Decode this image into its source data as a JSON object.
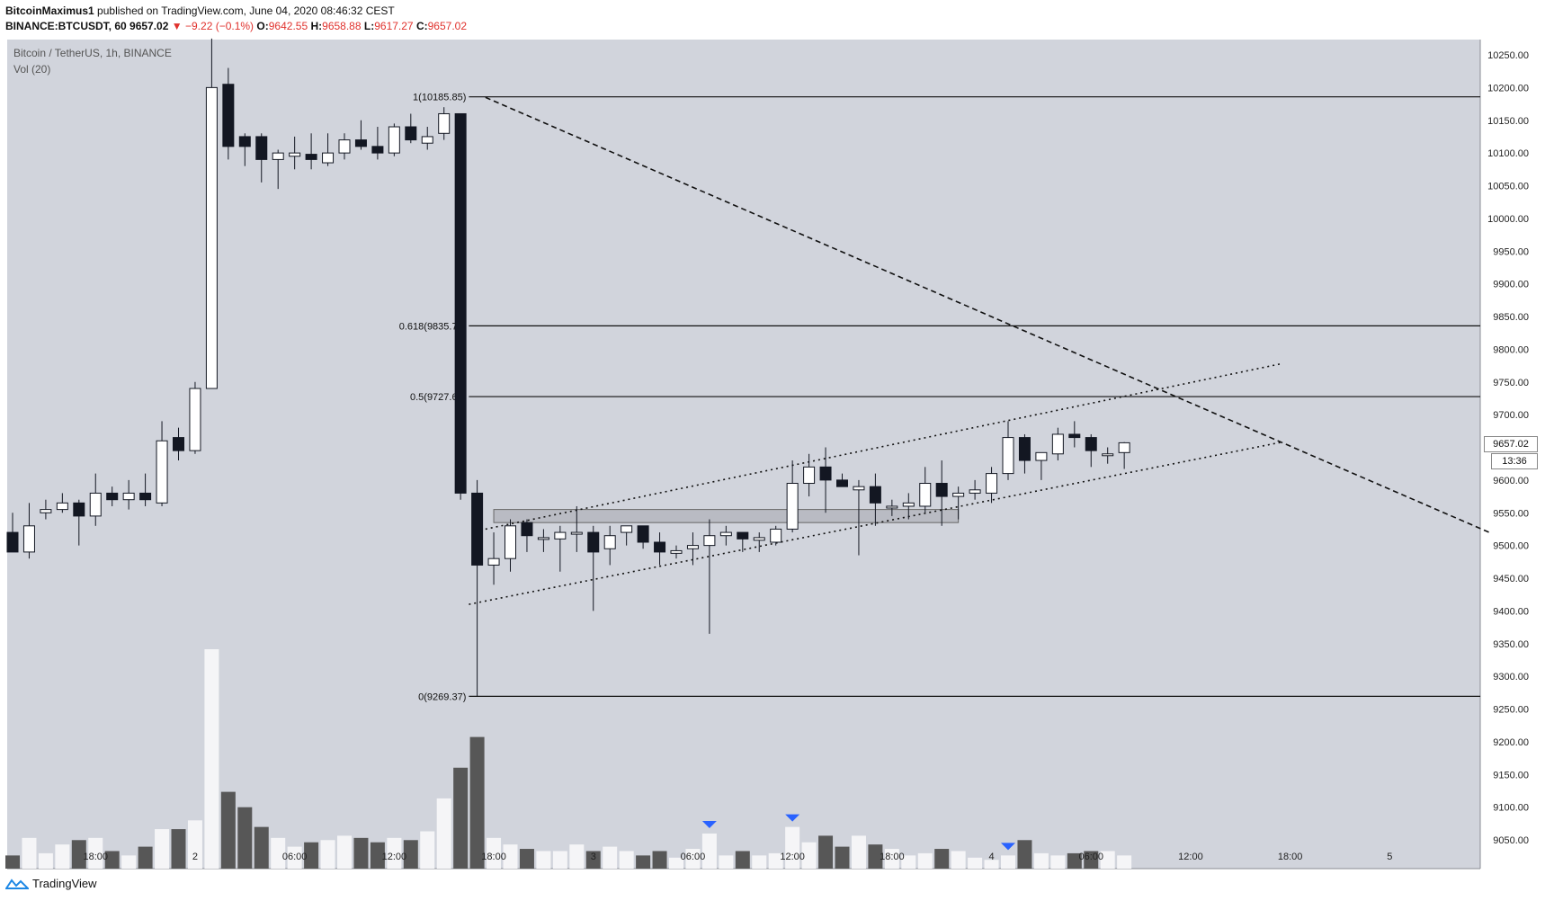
{
  "header": {
    "author": "BitcoinMaximus1",
    "published_text": "published on TradingView.com, June 04, 2020 08:46:32 CEST",
    "symbol": "BINANCE:BTCUSDT, 60",
    "last": "9657.02",
    "change": "−9.22 (−0.1%)",
    "o_label": "O:",
    "o": "9642.55",
    "h_label": "H:",
    "h": "9658.88",
    "l_label": "L:",
    "l": "9617.27",
    "c_label": "C:",
    "c": "9657.02"
  },
  "legend": {
    "title": "Bitcoin / TetherUS, 1h, BINANCE",
    "vol": "Vol (20)"
  },
  "price_tag": "9657.02",
  "time_tag": "13:36",
  "footer": {
    "brand": "TradingView"
  },
  "colors": {
    "plot_bg": "#d1d4dc",
    "up": "#ffffff",
    "down": "#131722",
    "vol_up": "#f5f5f7",
    "vol_down": "#575757",
    "marker": "#2962ff"
  },
  "chart_data": {
    "type": "candlestick",
    "ylim": [
      9050,
      10270
    ],
    "y_ticks": [
      "10250.00",
      "10200.00",
      "10150.00",
      "10100.00",
      "10050.00",
      "10000.00",
      "9950.00",
      "9900.00",
      "9850.00",
      "9800.00",
      "9750.00",
      "9700.00",
      "9650.00",
      "9600.00",
      "9550.00",
      "9500.00",
      "9450.00",
      "9400.00",
      "9350.00",
      "9300.00",
      "9250.00",
      "9200.00",
      "9150.00",
      "9100.00",
      "9050.00"
    ],
    "x_ticks": [
      {
        "label": "18:00",
        "i": 5
      },
      {
        "label": "2",
        "i": 11
      },
      {
        "label": "06:00",
        "i": 17
      },
      {
        "label": "12:00",
        "i": 23
      },
      {
        "label": "18:00",
        "i": 29
      },
      {
        "label": "3",
        "i": 35
      },
      {
        "label": "06:00",
        "i": 41
      },
      {
        "label": "12:00",
        "i": 47
      },
      {
        "label": "18:00",
        "i": 53
      },
      {
        "label": "4",
        "i": 59
      },
      {
        "label": "06:00",
        "i": 65
      },
      {
        "label": "12:00",
        "i": 71
      },
      {
        "label": "18:00",
        "i": 77
      },
      {
        "label": "5",
        "i": 83
      }
    ],
    "candles": [
      [
        9520,
        9550,
        9500,
        9490
      ],
      [
        9490,
        9565,
        9480,
        9530
      ],
      [
        9550,
        9570,
        9540,
        9555
      ],
      [
        9555,
        9580,
        9550,
        9565
      ],
      [
        9565,
        9570,
        9500,
        9545
      ],
      [
        9545,
        9610,
        9530,
        9580
      ],
      [
        9580,
        9590,
        9560,
        9570
      ],
      [
        9570,
        9600,
        9555,
        9580
      ],
      [
        9580,
        9610,
        9560,
        9570
      ],
      [
        9565,
        9690,
        9560,
        9660
      ],
      [
        9665,
        9680,
        9630,
        9645
      ],
      [
        9645,
        9750,
        9640,
        9740
      ],
      [
        9740,
        10275,
        9740,
        10200
      ],
      [
        10205,
        10230,
        10090,
        10110
      ],
      [
        10125,
        10130,
        10080,
        10110
      ],
      [
        10125,
        10130,
        10055,
        10090
      ],
      [
        10090,
        10105,
        10045,
        10100
      ],
      [
        10095,
        10125,
        10075,
        10100
      ],
      [
        10098,
        10130,
        10075,
        10090
      ],
      [
        10085,
        10130,
        10080,
        10100
      ],
      [
        10100,
        10130,
        10090,
        10120
      ],
      [
        10120,
        10150,
        10105,
        10110
      ],
      [
        10110,
        10140,
        10090,
        10100
      ],
      [
        10100,
        10145,
        10095,
        10140
      ],
      [
        10140,
        10160,
        10115,
        10120
      ],
      [
        10115,
        10140,
        10105,
        10125
      ],
      [
        10130,
        10170,
        10120,
        10160
      ],
      [
        10160,
        10160,
        9570,
        9580
      ],
      [
        9580,
        9600,
        9270,
        9470
      ],
      [
        9470,
        9520,
        9440,
        9480
      ],
      [
        9480,
        9540,
        9460,
        9530
      ],
      [
        9535,
        9540,
        9490,
        9515
      ],
      [
        9512,
        9525,
        9490,
        9512
      ],
      [
        9510,
        9530,
        9460,
        9520
      ],
      [
        9520,
        9560,
        9490,
        9520
      ],
      [
        9520,
        9530,
        9400,
        9490
      ],
      [
        9495,
        9530,
        9470,
        9515
      ],
      [
        9520,
        9530,
        9500,
        9530
      ],
      [
        9530,
        9530,
        9495,
        9505
      ],
      [
        9505,
        9520,
        9470,
        9490
      ],
      [
        9488,
        9500,
        9480,
        9492
      ],
      [
        9495,
        9520,
        9470,
        9500
      ],
      [
        9500,
        9540,
        9365,
        9515
      ],
      [
        9515,
        9530,
        9500,
        9520
      ],
      [
        9520,
        9520,
        9490,
        9510
      ],
      [
        9508,
        9520,
        9490,
        9512
      ],
      [
        9505,
        9530,
        9500,
        9525
      ],
      [
        9525,
        9630,
        9520,
        9595
      ],
      [
        9595,
        9640,
        9575,
        9620
      ],
      [
        9620,
        9650,
        9550,
        9600
      ],
      [
        9600,
        9610,
        9590,
        9590
      ],
      [
        9585,
        9600,
        9485,
        9590
      ],
      [
        9590,
        9610,
        9530,
        9565
      ],
      [
        9560,
        9570,
        9545,
        9560
      ],
      [
        9560,
        9580,
        9540,
        9565
      ],
      [
        9560,
        9620,
        9550,
        9595
      ],
      [
        9595,
        9630,
        9530,
        9575
      ],
      [
        9575,
        9590,
        9540,
        9580
      ],
      [
        9580,
        9600,
        9570,
        9585
      ],
      [
        9580,
        9620,
        9565,
        9610
      ],
      [
        9610,
        9690,
        9600,
        9665
      ],
      [
        9665,
        9670,
        9610,
        9630
      ],
      [
        9630,
        9640,
        9600,
        9642
      ],
      [
        9640,
        9680,
        9630,
        9670
      ],
      [
        9670,
        9690,
        9650,
        9665
      ],
      [
        9665,
        9670,
        9620,
        9645
      ],
      [
        9640,
        9650,
        9625,
        9640
      ],
      [
        9642,
        9658,
        9617,
        9657
      ]
    ],
    "volumes": [
      6,
      14,
      7,
      11,
      13,
      14,
      8,
      6,
      10,
      18,
      18,
      22,
      100,
      35,
      28,
      19,
      14,
      10,
      12,
      13,
      15,
      14,
      12,
      14,
      13,
      17,
      32,
      46,
      60,
      14,
      11,
      9,
      8,
      8,
      11,
      8,
      10,
      8,
      6,
      8,
      5,
      9,
      16,
      6,
      8,
      6,
      7,
      19,
      12,
      15,
      10,
      15,
      11,
      9,
      6,
      7,
      9,
      8,
      5,
      4,
      6,
      13,
      7,
      6,
      7,
      8,
      8,
      6
    ],
    "vol_markers": [
      42,
      47,
      60
    ],
    "fib_levels": [
      {
        "label": "1(10185.85)",
        "price": 10185.85
      },
      {
        "label": "0.618(9835.76)",
        "price": 9835.76
      },
      {
        "label": "0.5(9727.61)",
        "price": 9727.61
      },
      {
        "label": "0(9269.37)",
        "price": 9269.37
      }
    ],
    "fib_anchor_i": 27.5,
    "channel_upper": [
      [
        28.5,
        9525
      ],
      [
        76.5,
        9778
      ]
    ],
    "channel_lower": [
      [
        27.5,
        9410
      ],
      [
        76.5,
        9658
      ]
    ],
    "down_trendline": [
      [
        28.5,
        10185
      ],
      [
        89,
        9520
      ]
    ],
    "support_box": {
      "i1": 29,
      "i2": 57,
      "p1": 9535,
      "p2": 9555
    }
  }
}
